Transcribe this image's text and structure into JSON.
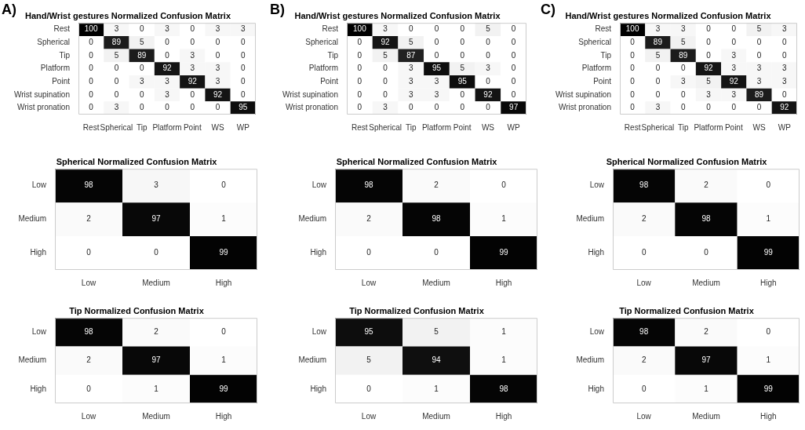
{
  "chart_data": [
    {
      "type": "heatmap",
      "title": "Hand/Wrist gestures Normalized Confusion Matrix",
      "annotations": [
        "A)"
      ],
      "data_labels": true,
      "categories": [
        "Rest",
        "Spherical",
        "Tip",
        "Platform",
        "Point",
        "WS",
        "WP"
      ],
      "y_categories": [
        "Rest",
        "Spherical",
        "Tip",
        "Platform",
        "Point",
        "Wrist supination",
        "Wrist pronation"
      ],
      "cells": [
        [
          100,
          3,
          0,
          3,
          0,
          3,
          3
        ],
        [
          0,
          89,
          5,
          0,
          0,
          0,
          0
        ],
        [
          0,
          5,
          89,
          0,
          3,
          0,
          0
        ],
        [
          0,
          0,
          0,
          92,
          3,
          3,
          0
        ],
        [
          0,
          0,
          3,
          3,
          92,
          3,
          0
        ],
        [
          0,
          0,
          0,
          3,
          0,
          92,
          0
        ],
        [
          0,
          3,
          0,
          0,
          0,
          0,
          95
        ]
      ]
    },
    {
      "type": "heatmap",
      "title": "Hand/Wrist gestures Normalized Confusion Matrix",
      "annotations": [
        "B)"
      ],
      "data_labels": true,
      "categories": [
        "Rest",
        "Spherical",
        "Tip",
        "Platform",
        "Point",
        "WS",
        "WP"
      ],
      "y_categories": [
        "Rest",
        "Spherical",
        "Tip",
        "Platform",
        "Point",
        "Wrist supination",
        "Wrist pronation"
      ],
      "cells": [
        [
          100,
          3,
          0,
          0,
          0,
          5,
          0
        ],
        [
          0,
          92,
          5,
          0,
          0,
          0,
          0
        ],
        [
          0,
          5,
          87,
          0,
          0,
          0,
          0
        ],
        [
          0,
          0,
          3,
          95,
          5,
          3,
          0
        ],
        [
          0,
          0,
          3,
          3,
          95,
          0,
          0
        ],
        [
          0,
          0,
          3,
          3,
          0,
          92,
          0
        ],
        [
          0,
          3,
          0,
          0,
          0,
          0,
          97
        ]
      ]
    },
    {
      "type": "heatmap",
      "title": "Hand/Wrist gestures Normalized Confusion Matrix",
      "annotations": [
        "C)"
      ],
      "data_labels": true,
      "categories": [
        "Rest",
        "Spherical",
        "Tip",
        "Platform",
        "Point",
        "WS",
        "WP"
      ],
      "y_categories": [
        "Rest",
        "Spherical",
        "Tip",
        "Platform",
        "Point",
        "Wrist supination",
        "Wrist pronation"
      ],
      "cells": [
        [
          100,
          3,
          3,
          0,
          0,
          5,
          3
        ],
        [
          0,
          89,
          5,
          0,
          0,
          0,
          0
        ],
        [
          0,
          5,
          89,
          0,
          3,
          0,
          0
        ],
        [
          0,
          0,
          0,
          92,
          3,
          3,
          3
        ],
        [
          0,
          0,
          3,
          5,
          92,
          3,
          3
        ],
        [
          0,
          0,
          0,
          3,
          3,
          89,
          0
        ],
        [
          0,
          3,
          0,
          0,
          0,
          0,
          92
        ]
      ]
    },
    {
      "type": "heatmap",
      "title": "Spherical Normalized Confusion Matrix",
      "data_labels": true,
      "categories": [
        "Low",
        "Medium",
        "High"
      ],
      "y_categories": [
        "Low",
        "Medium",
        "High"
      ],
      "cells": [
        [
          98,
          3,
          0
        ],
        [
          2,
          97,
          1
        ],
        [
          0,
          0,
          99
        ]
      ]
    },
    {
      "type": "heatmap",
      "title": "Spherical Normalized Confusion Matrix",
      "data_labels": true,
      "categories": [
        "Low",
        "Medium",
        "High"
      ],
      "y_categories": [
        "Low",
        "Medium",
        "High"
      ],
      "cells": [
        [
          98,
          2,
          0
        ],
        [
          2,
          98,
          1
        ],
        [
          0,
          0,
          99
        ]
      ]
    },
    {
      "type": "heatmap",
      "title": "Spherical Normalized Confusion Matrix",
      "data_labels": true,
      "categories": [
        "Low",
        "Medium",
        "High"
      ],
      "y_categories": [
        "Low",
        "Medium",
        "High"
      ],
      "cells": [
        [
          98,
          2,
          0
        ],
        [
          2,
          98,
          1
        ],
        [
          0,
          0,
          99
        ]
      ]
    },
    {
      "type": "heatmap",
      "title": "Tip Normalized Confusion Matrix",
      "data_labels": true,
      "categories": [
        "Low",
        "Medium",
        "High"
      ],
      "y_categories": [
        "Low",
        "Medium",
        "High"
      ],
      "cells": [
        [
          98,
          2,
          0
        ],
        [
          2,
          97,
          1
        ],
        [
          0,
          1,
          99
        ]
      ]
    },
    {
      "type": "heatmap",
      "title": "Tip Normalized Confusion Matrix",
      "data_labels": true,
      "categories": [
        "Low",
        "Medium",
        "High"
      ],
      "y_categories": [
        "Low",
        "Medium",
        "High"
      ],
      "cells": [
        [
          95,
          5,
          1
        ],
        [
          5,
          94,
          1
        ],
        [
          0,
          1,
          98
        ]
      ]
    },
    {
      "type": "heatmap",
      "title": "Tip Normalized Confusion Matrix",
      "data_labels": true,
      "categories": [
        "Low",
        "Medium",
        "High"
      ],
      "y_categories": [
        "Low",
        "Medium",
        "High"
      ],
      "cells": [
        [
          98,
          2,
          0
        ],
        [
          2,
          97,
          1
        ],
        [
          0,
          1,
          99
        ]
      ]
    }
  ]
}
